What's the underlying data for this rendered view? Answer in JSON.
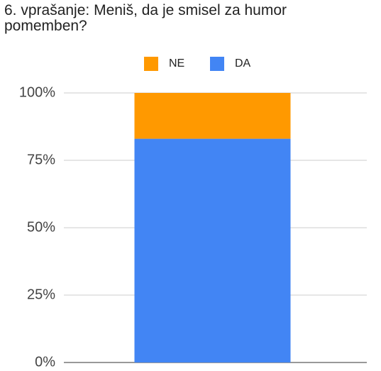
{
  "chart_data": {
    "type": "stacked_bar",
    "title": "6. vprašanje: Meniš, da je smisel za humor pomemben?",
    "categories": [
      null
    ],
    "series": [
      {
        "name": "NE",
        "color": "#ff9900",
        "values": [
          17
        ]
      },
      {
        "name": "DA",
        "color": "#4285f4",
        "values": [
          83
        ]
      }
    ],
    "ylim": [
      0,
      100
    ],
    "yticks": [
      {
        "value": 0,
        "label": "0%"
      },
      {
        "value": 25,
        "label": "25%"
      },
      {
        "value": 50,
        "label": "50%"
      },
      {
        "value": 75,
        "label": "75%"
      },
      {
        "value": 100,
        "label": "100%"
      }
    ],
    "grid": true,
    "legend": "top"
  }
}
